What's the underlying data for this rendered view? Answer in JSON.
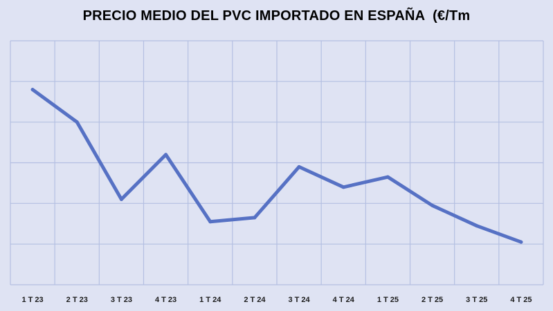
{
  "chart_data": {
    "type": "line",
    "title": "PRECIO MEDIO DEL PVC IMPORTADO EN ESPAÑA  (€/Tm",
    "xlabel": "",
    "ylabel": "",
    "categories": [
      "1 T 23",
      "2 T 23",
      "3 T 23",
      "4 T 23",
      "1 T 24",
      "2 T 24",
      "3 T 24",
      "4 T 24",
      "1 T 25",
      "2 T 25",
      "3 T 25",
      "4 T 25"
    ],
    "series": [
      {
        "values": [
          4.8,
          4.0,
          2.1,
          3.2,
          1.55,
          1.65,
          2.9,
          2.4,
          2.65,
          1.95,
          1.45,
          1.05
        ]
      }
    ],
    "ylim": [
      0,
      6
    ],
    "grid": true,
    "legend": "none",
    "colors": {
      "line": "#5671c4",
      "grid": "#b4bfe2",
      "background": "#dfe3f3"
    }
  }
}
